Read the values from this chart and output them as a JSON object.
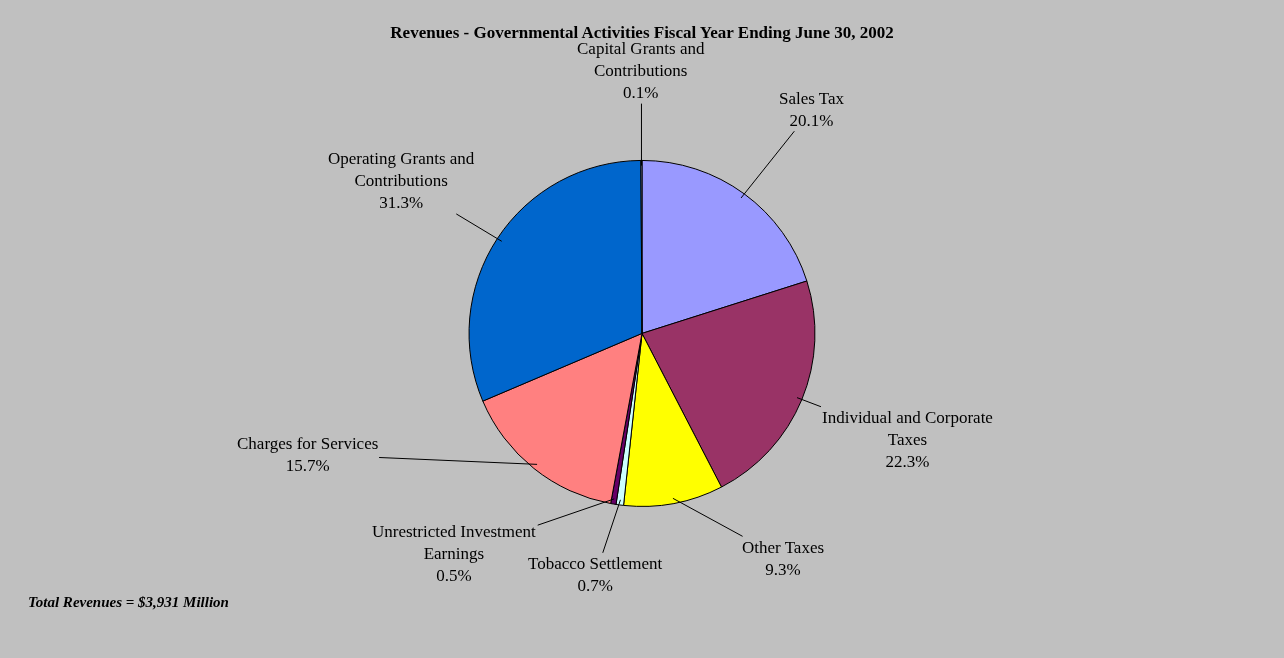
{
  "chart_data": {
    "type": "pie",
    "title": "Revenues - Governmental Activities Fiscal Year Ending June 30, 2002",
    "categories": [
      "Sales Tax",
      "Individual and Corporate Taxes",
      "Other Taxes",
      "Tobacco Settlement",
      "Unrestricted Investment Earnings",
      "Charges for Services",
      "Operating Grants and Contributions",
      "Capital Grants and Contributions"
    ],
    "values": [
      20.1,
      22.3,
      9.3,
      0.7,
      0.5,
      15.7,
      31.3,
      0.1
    ],
    "value_labels": [
      "20.1%",
      "22.3%",
      "9.3%",
      "0.7%",
      "0.5%",
      "15.7%",
      "31.3%",
      "0.1%"
    ],
    "colors": [
      "#9999ff",
      "#993366",
      "#ffff00",
      "#ccffff",
      "#660066",
      "#ff8080",
      "#0066cc",
      "#ccccff"
    ],
    "annotations": [
      "Total Revenues = $3,931 Million"
    ],
    "legend": false
  }
}
